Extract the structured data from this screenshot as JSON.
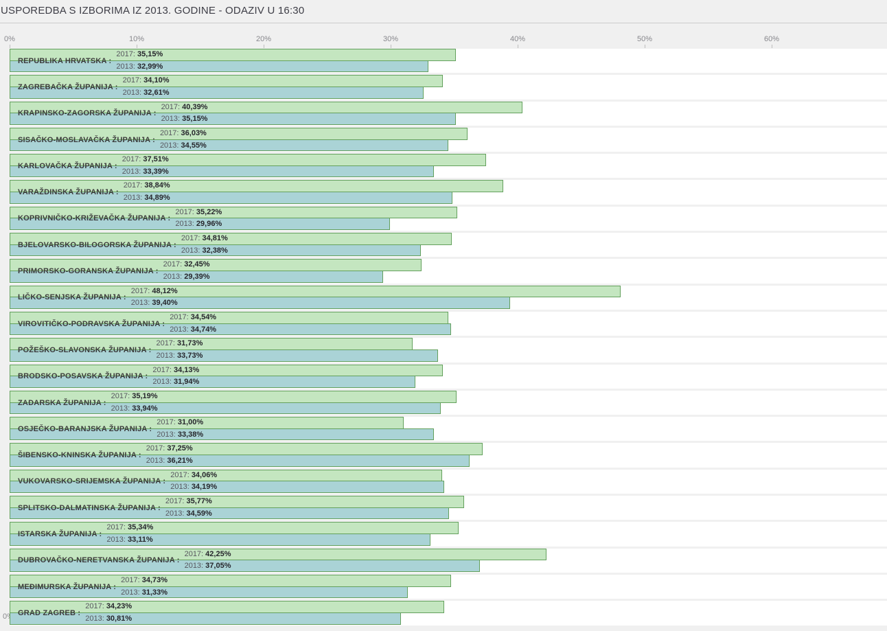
{
  "header": {
    "title": "USPOREDBA S IZBORIMA IZ 2013. GODINE - ODAZIV U 16:30"
  },
  "axis": {
    "tick_labels": [
      "0%",
      "10%",
      "20%",
      "30%",
      "40%",
      "50%",
      "60%"
    ],
    "bottom_left_label": "0%"
  },
  "series_labels": {
    "y2017": "2017:",
    "y2013": "2013:"
  },
  "colors": {
    "bar_2017_fill": "#c4e6c0",
    "bar_2013_fill": "#aad3d6",
    "bar_border": "#63a05c",
    "row_band_bg": "#ffffff",
    "page_bg": "#f0f0f0"
  },
  "rows": [
    {
      "label": "REPUBLIKA HRVATSKA :",
      "v2017_label": "35,15%",
      "v2013_label": "32,99%",
      "v2017": 35.15,
      "v2013": 32.99
    },
    {
      "label": "ZAGREBAČKA ŽUPANIJA :",
      "v2017_label": "34,10%",
      "v2013_label": "32,61%",
      "v2017": 34.1,
      "v2013": 32.61
    },
    {
      "label": "KRAPINSKO-ZAGORSKA ŽUPANIJA :",
      "v2017_label": "40,39%",
      "v2013_label": "35,15%",
      "v2017": 40.39,
      "v2013": 35.15
    },
    {
      "label": "SISAČKO-MOSLAVAČKA ŽUPANIJA :",
      "v2017_label": "36,03%",
      "v2013_label": "34,55%",
      "v2017": 36.03,
      "v2013": 34.55
    },
    {
      "label": "KARLOVAČKA ŽUPANIJA :",
      "v2017_label": "37,51%",
      "v2013_label": "33,39%",
      "v2017": 37.51,
      "v2013": 33.39
    },
    {
      "label": "VARAŽDINSKA ŽUPANIJA :",
      "v2017_label": "38,84%",
      "v2013_label": "34,89%",
      "v2017": 38.84,
      "v2013": 34.89
    },
    {
      "label": "KOPRIVNIČKO-KRIŽEVAČKA ŽUPANIJA :",
      "v2017_label": "35,22%",
      "v2013_label": "29,96%",
      "v2017": 35.22,
      "v2013": 29.96
    },
    {
      "label": "BJELOVARSKO-BILOGORSKA ŽUPANIJA :",
      "v2017_label": "34,81%",
      "v2013_label": "32,38%",
      "v2017": 34.81,
      "v2013": 32.38
    },
    {
      "label": "PRIMORSKO-GORANSKA ŽUPANIJA :",
      "v2017_label": "32,45%",
      "v2013_label": "29,39%",
      "v2017": 32.45,
      "v2013": 29.39
    },
    {
      "label": "LIČKO-SENJSKA ŽUPANIJA :",
      "v2017_label": "48,12%",
      "v2013_label": "39,40%",
      "v2017": 48.12,
      "v2013": 39.4
    },
    {
      "label": "VIROVITIČKO-PODRAVSKA ŽUPANIJA :",
      "v2017_label": "34,54%",
      "v2013_label": "34,74%",
      "v2017": 34.54,
      "v2013": 34.74
    },
    {
      "label": "POŽEŠKO-SLAVONSKA ŽUPANIJA :",
      "v2017_label": "31,73%",
      "v2013_label": "33,73%",
      "v2017": 31.73,
      "v2013": 33.73
    },
    {
      "label": "BRODSKO-POSAVSKA ŽUPANIJA :",
      "v2017_label": "34,13%",
      "v2013_label": "31,94%",
      "v2017": 34.13,
      "v2013": 31.94
    },
    {
      "label": "ZADARSKA ŽUPANIJA :",
      "v2017_label": "35,19%",
      "v2013_label": "33,94%",
      "v2017": 35.19,
      "v2013": 33.94
    },
    {
      "label": "OSJEČKO-BARANJSKA ŽUPANIJA :",
      "v2017_label": "31,00%",
      "v2013_label": "33,38%",
      "v2017": 31.0,
      "v2013": 33.38
    },
    {
      "label": "ŠIBENSKO-KNINSKA ŽUPANIJA :",
      "v2017_label": "37,25%",
      "v2013_label": "36,21%",
      "v2017": 37.25,
      "v2013": 36.21
    },
    {
      "label": "VUKOVARSKO-SRIJEMSKA ŽUPANIJA :",
      "v2017_label": "34,06%",
      "v2013_label": "34,19%",
      "v2017": 34.06,
      "v2013": 34.19
    },
    {
      "label": "SPLITSKO-DALMATINSKA ŽUPANIJA :",
      "v2017_label": "35,77%",
      "v2013_label": "34,59%",
      "v2017": 35.77,
      "v2013": 34.59
    },
    {
      "label": "ISTARSKA ŽUPANIJA :",
      "v2017_label": "35,34%",
      "v2013_label": "33,11%",
      "v2017": 35.34,
      "v2013": 33.11
    },
    {
      "label": "DUBROVAČKO-NERETVANSKA ŽUPANIJA :",
      "v2017_label": "42,25%",
      "v2013_label": "37,05%",
      "v2017": 42.25,
      "v2013": 37.05
    },
    {
      "label": "MEĐIMURSKA ŽUPANIJA :",
      "v2017_label": "34,73%",
      "v2013_label": "31,33%",
      "v2017": 34.73,
      "v2013": 31.33
    },
    {
      "label": "GRAD ZAGREB :",
      "v2017_label": "34,23%",
      "v2013_label": "30,81%",
      "v2017": 34.23,
      "v2013": 30.81
    }
  ],
  "chart_data": {
    "type": "bar",
    "title": "USPOREDBA S IZBORIMA IZ 2013. GODINE - ODAZIV U 16:30",
    "orientation": "horizontal",
    "categories": [
      "REPUBLIKA HRVATSKA",
      "ZAGREBAČKA ŽUPANIJA",
      "KRAPINSKO-ZAGORSKA ŽUPANIJA",
      "SISAČKO-MOSLAVAČKA ŽUPANIJA",
      "KARLOVAČKA ŽUPANIJA",
      "VARAŽDINSKA ŽUPANIJA",
      "KOPRIVNIČKO-KRIŽEVAČKA ŽUPANIJA",
      "BJELOVARSKO-BILOGORSKA ŽUPANIJA",
      "PRIMORSKO-GORANSKA ŽUPANIJA",
      "LIČKO-SENJSKA ŽUPANIJA",
      "VIROVITIČKO-PODRAVSKA ŽUPANIJA",
      "POŽEŠKO-SLAVONSKA ŽUPANIJA",
      "BRODSKO-POSAVSKA ŽUPANIJA",
      "ZADARSKA ŽUPANIJA",
      "OSJEČKO-BARANJSKA ŽUPANIJA",
      "ŠIBENSKO-KNINSKA ŽUPANIJA",
      "VUKOVARSKO-SRIJEMSKA ŽUPANIJA",
      "SPLITSKO-DALMATINSKA ŽUPANIJA",
      "ISTARSKA ŽUPANIJA",
      "DUBROVAČKO-NERETVANSKA ŽUPANIJA",
      "MEĐIMURSKA ŽUPANIJA",
      "GRAD ZAGREB"
    ],
    "series": [
      {
        "name": "2017",
        "values": [
          35.15,
          34.1,
          40.39,
          36.03,
          37.51,
          38.84,
          35.22,
          34.81,
          32.45,
          48.12,
          34.54,
          31.73,
          34.13,
          35.19,
          31.0,
          37.25,
          34.06,
          35.77,
          35.34,
          42.25,
          34.73,
          34.23
        ]
      },
      {
        "name": "2013",
        "values": [
          32.99,
          32.61,
          35.15,
          34.55,
          33.39,
          34.89,
          29.96,
          32.38,
          29.39,
          39.4,
          34.74,
          33.73,
          31.94,
          33.94,
          33.38,
          36.21,
          34.19,
          34.59,
          33.11,
          37.05,
          31.33,
          30.81
        ]
      }
    ],
    "xlabel": "",
    "ylabel": "",
    "value_format": "percent-comma-decimal",
    "axis_ticks_percent": [
      0,
      10,
      20,
      30,
      40,
      50,
      60
    ],
    "xlim": [
      0,
      69
    ],
    "grid": false,
    "legend_position": "none",
    "axis_position": "top"
  }
}
